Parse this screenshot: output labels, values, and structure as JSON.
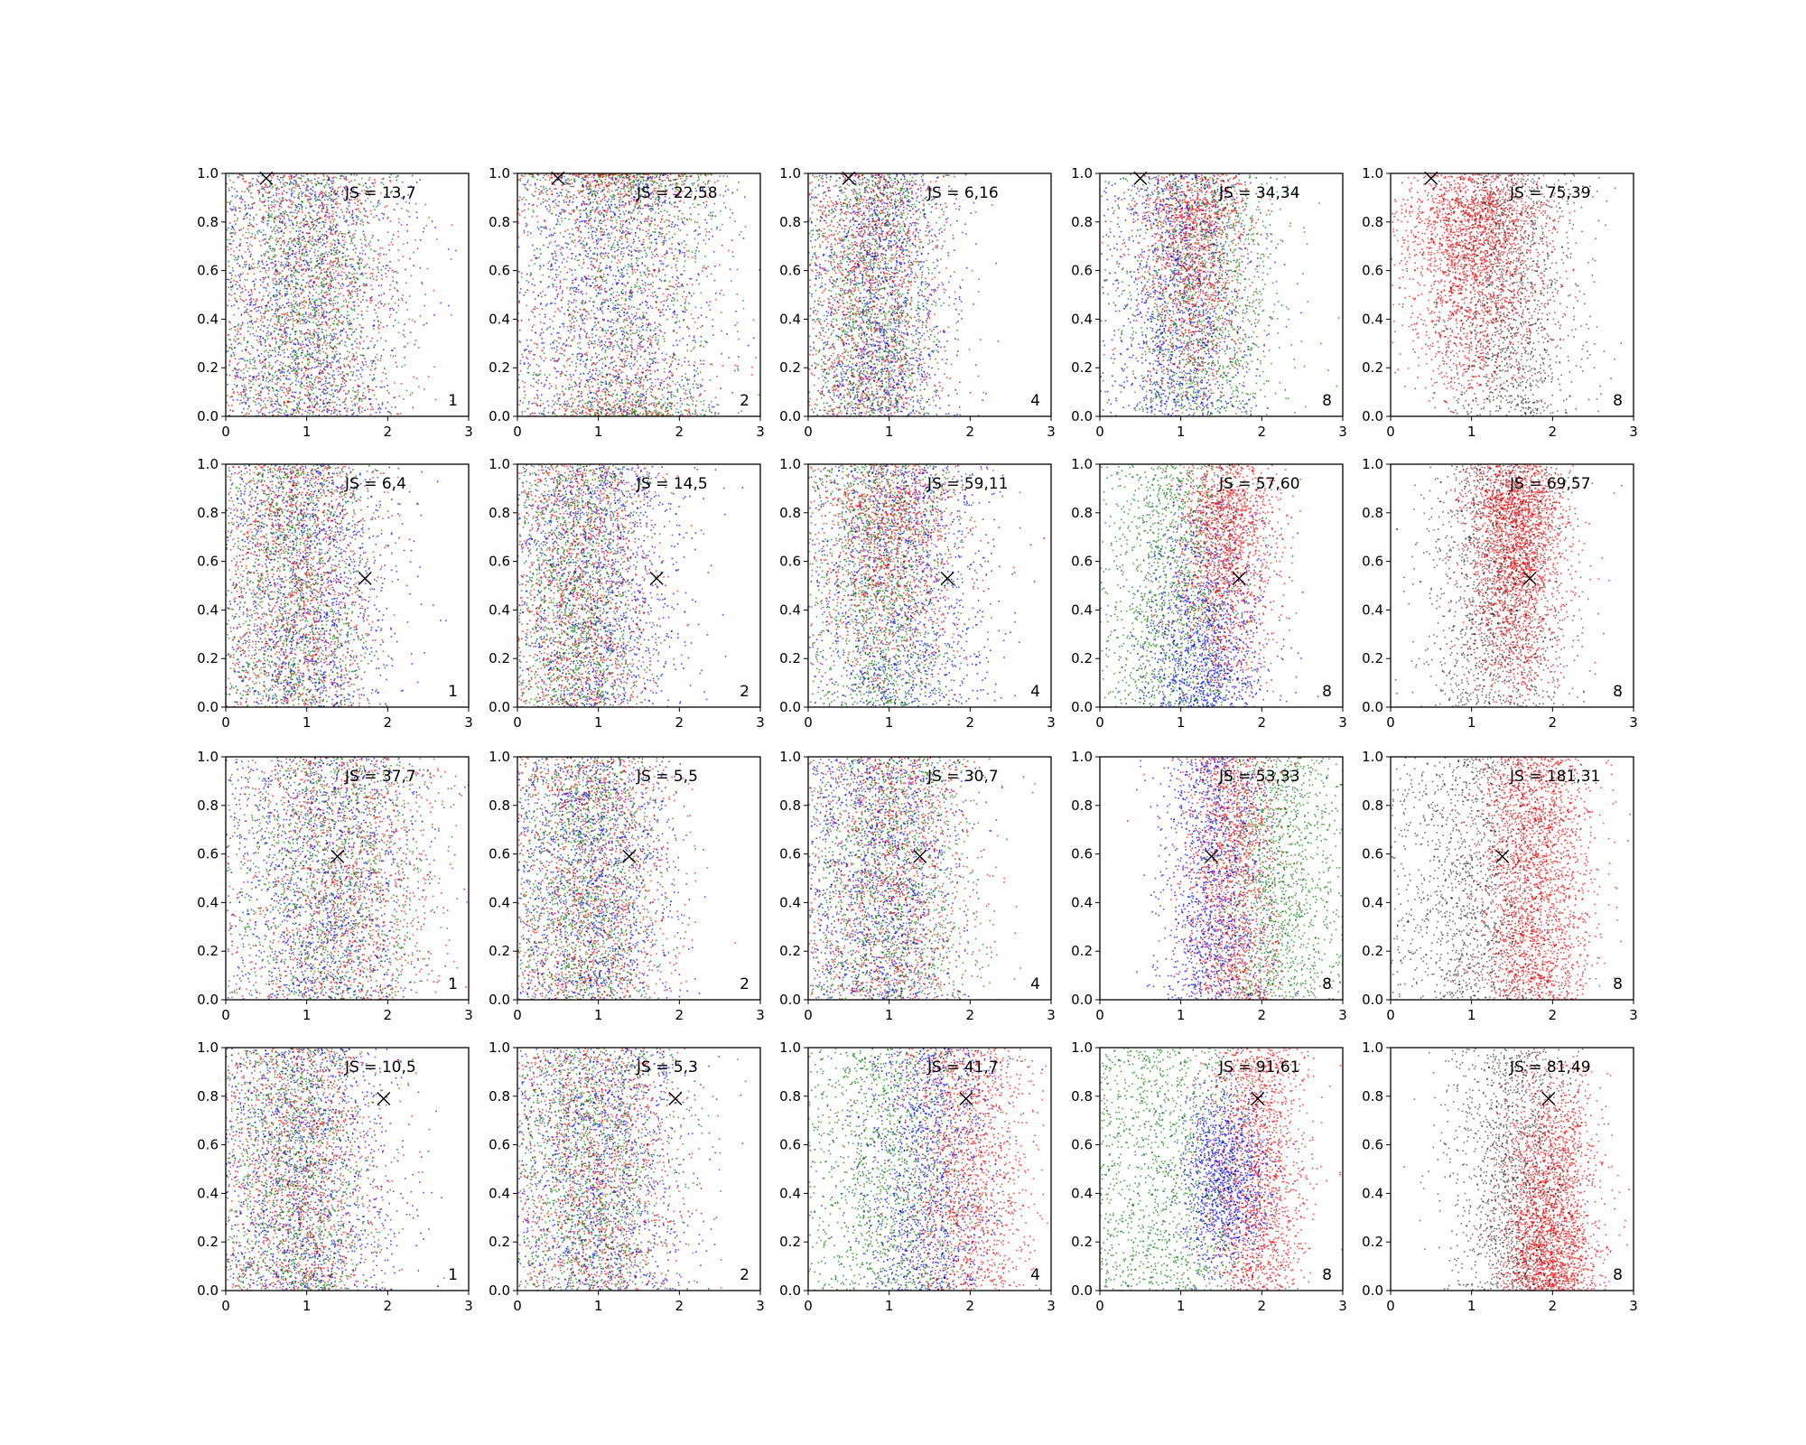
{
  "chart_data": {
    "type": "scatter",
    "layout": {
      "rows": 4,
      "cols": 5
    },
    "xlim": [
      0,
      3
    ],
    "ylim": [
      0,
      1
    ],
    "xticks": [
      "0",
      "1",
      "2",
      "3"
    ],
    "yticks": [
      "0.0",
      "0.2",
      "0.4",
      "0.6",
      "0.8",
      "1.0"
    ],
    "grid": false,
    "colors": {
      "red": "#ff0000",
      "green": "#008000",
      "blue": "#0000ff",
      "black": "#000000"
    },
    "markers": [
      {
        "x": 0.5,
        "y": 0.98
      },
      {
        "x": 1.72,
        "y": 0.53
      },
      {
        "x": 1.38,
        "y": 0.59
      },
      {
        "x": 1.95,
        "y": 0.79
      }
    ],
    "panels": [
      {
        "js": "JS = 13,7",
        "k": "1",
        "series": [
          {
            "color": "red",
            "mu": 1.0,
            "sd": 0.6,
            "n": 1300
          },
          {
            "color": "green",
            "mu": 1.0,
            "sd": 0.55,
            "n": 1300
          },
          {
            "color": "blue",
            "mu": 1.0,
            "sd": 0.6,
            "n": 1300
          }
        ]
      },
      {
        "js": "JS = 22,58",
        "k": "2",
        "series": [
          {
            "color": "red",
            "mu": 1.2,
            "sd": 0.6,
            "n": 1300,
            "yfocus": "ends"
          },
          {
            "color": "green",
            "mu": 1.3,
            "sd": 0.6,
            "n": 1300,
            "yfocus": "ends"
          },
          {
            "color": "blue",
            "mu": 1.2,
            "sd": 0.65,
            "n": 1300
          }
        ]
      },
      {
        "js": "JS = 6,16",
        "k": "4",
        "series": [
          {
            "color": "red",
            "mu": 0.8,
            "sd": 0.4,
            "n": 1300
          },
          {
            "color": "green",
            "mu": 0.8,
            "sd": 0.4,
            "n": 1300
          },
          {
            "color": "blue",
            "mu": 0.9,
            "sd": 0.45,
            "n": 1300
          }
        ]
      },
      {
        "js": "JS = 34,34",
        "k": "8",
        "series": [
          {
            "color": "red",
            "mu": 1.15,
            "sd": 0.35,
            "n": 1400,
            "yfocus": "top"
          },
          {
            "color": "green",
            "mu": 1.25,
            "sd": 0.5,
            "n": 1300
          },
          {
            "color": "blue",
            "mu": 1.0,
            "sd": 0.45,
            "n": 1300
          }
        ]
      },
      {
        "js": "JS = 75,39",
        "k": "8",
        "series": [
          {
            "color": "red",
            "mu": 1.05,
            "sd": 0.45,
            "n": 2200,
            "yfocus": "top"
          },
          {
            "color": "black",
            "mu": 1.45,
            "sd": 0.45,
            "n": 1400
          }
        ]
      },
      {
        "js": "JS = 6,4",
        "k": "1",
        "series": [
          {
            "color": "red",
            "mu": 0.85,
            "sd": 0.45,
            "n": 1300
          },
          {
            "color": "green",
            "mu": 0.85,
            "sd": 0.45,
            "n": 1300
          },
          {
            "color": "blue",
            "mu": 1.0,
            "sd": 0.55,
            "n": 1300
          }
        ]
      },
      {
        "js": "JS = 14,5",
        "k": "2",
        "series": [
          {
            "color": "red",
            "mu": 0.8,
            "sd": 0.45,
            "n": 1300
          },
          {
            "color": "green",
            "mu": 0.75,
            "sd": 0.4,
            "n": 1300
          },
          {
            "color": "blue",
            "mu": 1.0,
            "sd": 0.55,
            "n": 1300
          }
        ]
      },
      {
        "js": "JS = 59,11",
        "k": "4",
        "series": [
          {
            "color": "red",
            "mu": 1.0,
            "sd": 0.45,
            "n": 1300,
            "yfocus": "top"
          },
          {
            "color": "green",
            "mu": 0.9,
            "sd": 0.45,
            "n": 1300
          },
          {
            "color": "blue",
            "mu": 1.2,
            "sd": 0.55,
            "n": 1300
          }
        ]
      },
      {
        "js": "JS = 57,60",
        "k": "8",
        "series": [
          {
            "color": "red",
            "mu": 1.55,
            "sd": 0.3,
            "n": 1500,
            "yfocus": "top"
          },
          {
            "color": "green",
            "mu": 0.9,
            "sd": 0.45,
            "n": 1300
          },
          {
            "color": "blue",
            "mu": 1.3,
            "sd": 0.4,
            "n": 1300,
            "yfocus": "bottom"
          }
        ]
      },
      {
        "js": "JS = 69,57",
        "k": "8",
        "series": [
          {
            "color": "red",
            "mu": 1.55,
            "sd": 0.3,
            "n": 2200,
            "yfocus": "top"
          },
          {
            "color": "black",
            "mu": 1.3,
            "sd": 0.45,
            "n": 1400
          }
        ]
      },
      {
        "js": "JS = 37,7",
        "k": "1",
        "series": [
          {
            "color": "red",
            "mu": 1.4,
            "sd": 0.6,
            "n": 1300
          },
          {
            "color": "green",
            "mu": 1.3,
            "sd": 0.6,
            "n": 1300
          },
          {
            "color": "blue",
            "mu": 1.2,
            "sd": 0.6,
            "n": 1300
          }
        ]
      },
      {
        "js": "JS = 5,5",
        "k": "2",
        "series": [
          {
            "color": "red",
            "mu": 0.9,
            "sd": 0.5,
            "n": 1300
          },
          {
            "color": "green",
            "mu": 0.85,
            "sd": 0.45,
            "n": 1300
          },
          {
            "color": "blue",
            "mu": 0.95,
            "sd": 0.5,
            "n": 1300
          }
        ]
      },
      {
        "js": "JS = 30,7",
        "k": "4",
        "series": [
          {
            "color": "red",
            "mu": 1.0,
            "sd": 0.5,
            "n": 1300
          },
          {
            "color": "green",
            "mu": 1.0,
            "sd": 0.5,
            "n": 1300
          },
          {
            "color": "blue",
            "mu": 0.9,
            "sd": 0.5,
            "n": 1300
          }
        ]
      },
      {
        "js": "JS = 53,33",
        "k": "8",
        "series": [
          {
            "color": "red",
            "mu": 1.65,
            "sd": 0.3,
            "n": 1500
          },
          {
            "color": "green",
            "mu": 2.25,
            "sd": 0.4,
            "n": 1300
          },
          {
            "color": "blue",
            "mu": 1.4,
            "sd": 0.35,
            "n": 1300
          }
        ]
      },
      {
        "js": "JS = 181,31",
        "k": "8",
        "series": [
          {
            "color": "red",
            "mu": 1.75,
            "sd": 0.35,
            "n": 2200
          },
          {
            "color": "black",
            "mu": 1.0,
            "sd": 0.5,
            "n": 1400
          }
        ]
      },
      {
        "js": "JS = 10,5",
        "k": "1",
        "series": [
          {
            "color": "red",
            "mu": 0.9,
            "sd": 0.5,
            "n": 1300
          },
          {
            "color": "green",
            "mu": 0.85,
            "sd": 0.45,
            "n": 1300
          },
          {
            "color": "blue",
            "mu": 1.0,
            "sd": 0.55,
            "n": 1300
          }
        ]
      },
      {
        "js": "JS = 5,3",
        "k": "2",
        "series": [
          {
            "color": "red",
            "mu": 1.0,
            "sd": 0.55,
            "n": 1300
          },
          {
            "color": "green",
            "mu": 0.9,
            "sd": 0.5,
            "n": 1300
          },
          {
            "color": "blue",
            "mu": 1.0,
            "sd": 0.55,
            "n": 1300
          }
        ]
      },
      {
        "js": "JS = 41,7",
        "k": "4",
        "series": [
          {
            "color": "red",
            "mu": 1.95,
            "sd": 0.4,
            "n": 1400
          },
          {
            "color": "green",
            "mu": 1.0,
            "sd": 0.55,
            "n": 1300
          },
          {
            "color": "blue",
            "mu": 1.45,
            "sd": 0.45,
            "n": 1300
          }
        ]
      },
      {
        "js": "JS = 91,61",
        "k": "8",
        "series": [
          {
            "color": "red",
            "mu": 1.95,
            "sd": 0.3,
            "n": 1500
          },
          {
            "color": "green",
            "mu": 0.8,
            "sd": 0.55,
            "n": 1300
          },
          {
            "color": "blue",
            "mu": 1.55,
            "sd": 0.3,
            "n": 1300,
            "yfocus": "mid"
          }
        ]
      },
      {
        "js": "JS = 81,49",
        "k": "8",
        "series": [
          {
            "color": "red",
            "mu": 1.95,
            "sd": 0.3,
            "n": 2200,
            "yfocus": "bottom"
          },
          {
            "color": "black",
            "mu": 1.5,
            "sd": 0.4,
            "n": 1400
          }
        ]
      }
    ]
  }
}
